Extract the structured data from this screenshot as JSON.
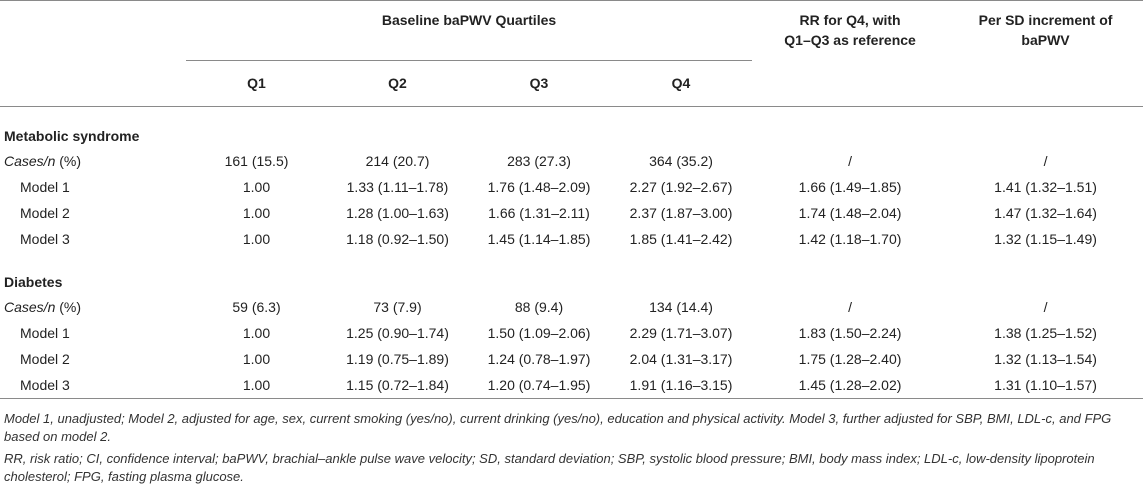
{
  "header": {
    "group_title": "Baseline baPWV Quartiles",
    "rr_title_line1": "RR for Q4, with",
    "rr_title_line2": "Q1–Q3 as reference",
    "sd_title_line1": "Per SD increment of",
    "sd_title_line2": "baPWV",
    "quartiles": [
      "Q1",
      "Q2",
      "Q3",
      "Q4"
    ]
  },
  "sections": [
    {
      "title": "Metabolic syndrome",
      "rows": [
        {
          "label": "Cases/n (%)",
          "q1": "161 (15.5)",
          "q2": "214 (20.7)",
          "q3": "283 (27.3)",
          "q4": "364 (35.2)",
          "rr": "/",
          "sd": "/"
        },
        {
          "label": "Model 1",
          "q1": "1.00",
          "q2": "1.33 (1.11–1.78)",
          "q3": "1.76 (1.48–2.09)",
          "q4": "2.27 (1.92–2.67)",
          "rr": "1.66 (1.49–1.85)",
          "sd": "1.41 (1.32–1.51)"
        },
        {
          "label": "Model 2",
          "q1": "1.00",
          "q2": "1.28 (1.00–1.63)",
          "q3": "1.66 (1.31–2.11)",
          "q4": "2.37 (1.87–3.00)",
          "rr": "1.74 (1.48–2.04)",
          "sd": "1.47 (1.32–1.64)"
        },
        {
          "label": "Model 3",
          "q1": "1.00",
          "q2": "1.18 (0.92–1.50)",
          "q3": "1.45 (1.14–1.85)",
          "q4": "1.85 (1.41–2.42)",
          "rr": "1.42 (1.18–1.70)",
          "sd": "1.32 (1.15–1.49)"
        }
      ]
    },
    {
      "title": "Diabetes",
      "rows": [
        {
          "label": "Cases/n (%)",
          "q1": "59 (6.3)",
          "q2": "73 (7.9)",
          "q3": "88 (9.4)",
          "q4": "134 (14.4)",
          "rr": "/",
          "sd": "/"
        },
        {
          "label": "Model 1",
          "q1": "1.00",
          "q2": "1.25 (0.90–1.74)",
          "q3": "1.50 (1.09–2.06)",
          "q4": "2.29 (1.71–3.07)",
          "rr": "1.83 (1.50–2.24)",
          "sd": "1.38 (1.25–1.52)"
        },
        {
          "label": "Model 2",
          "q1": "1.00",
          "q2": "1.19 (0.75–1.89)",
          "q3": "1.24 (0.78–1.97)",
          "q4": "2.04 (1.31–3.17)",
          "rr": "1.75 (1.28–2.40)",
          "sd": "1.32 (1.13–1.54)"
        },
        {
          "label": "Model 3",
          "q1": "1.00",
          "q2": "1.15 (0.72–1.84)",
          "q3": "1.20 (0.74–1.95)",
          "q4": "1.91 (1.16–3.15)",
          "rr": "1.45 (1.28–2.02)",
          "sd": "1.31 (1.10–1.57)"
        }
      ]
    }
  ],
  "notes": [
    "Model 1, unadjusted; Model 2, adjusted for age, sex, current smoking (yes/no), current drinking (yes/no), education and physical activity. Model 3, further adjusted for SBP, BMI, LDL-c, and FPG based on model 2.",
    "RR, risk ratio; CI, confidence interval; baPWV, brachial–ankle pulse wave velocity; SD, standard deviation; SBP, systolic blood pressure; BMI, body mass index; LDL-c, low-density lipoprotein cholesterol; FPG, fasting plasma glucose."
  ]
}
